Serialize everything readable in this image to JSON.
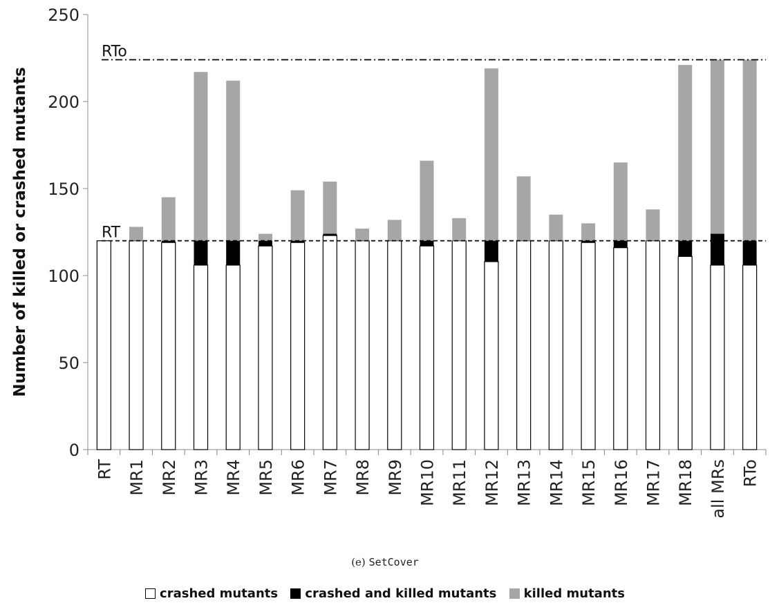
{
  "chart_data": {
    "type": "bar",
    "stacked": true,
    "categories": [
      "RT",
      "MR1",
      "MR2",
      "MR3",
      "MR4",
      "MR5",
      "MR6",
      "MR7",
      "MR8",
      "MR9",
      "MR10",
      "MR11",
      "MR12",
      "MR13",
      "MR14",
      "MR15",
      "MR16",
      "MR17",
      "MR18",
      "all MRs",
      "RTo"
    ],
    "series": [
      {
        "name": "crashed mutants",
        "color": "#ffffff",
        "values": [
          120,
          120,
          119,
          106,
          106,
          117,
          119,
          123,
          120,
          120,
          117,
          120,
          108,
          120,
          120,
          119,
          116,
          120,
          111,
          106,
          106
        ]
      },
      {
        "name": "crashed and killed mutants",
        "color": "#000000",
        "values": [
          0,
          0,
          1,
          14,
          14,
          3,
          1,
          1,
          0,
          0,
          3,
          0,
          12,
          0,
          0,
          1,
          4,
          0,
          9,
          18,
          14
        ]
      },
      {
        "name": "killed mutants",
        "color": "#a6a6a6",
        "values": [
          0,
          8,
          25,
          97,
          92,
          4,
          29,
          30,
          7,
          12,
          46,
          13,
          99,
          37,
          15,
          10,
          45,
          18,
          101,
          100,
          104
        ]
      }
    ],
    "reference_lines": [
      {
        "label": "RTo",
        "value": 224,
        "style": "dash-dot"
      },
      {
        "label": "RT",
        "value": 120,
        "style": "dashed"
      }
    ],
    "ylabel": "Number of killed or crashed mutants",
    "yticks": [
      0,
      50,
      100,
      150,
      200,
      250
    ],
    "ylim": [
      0,
      250
    ],
    "grid": false,
    "legend_position": "bottom"
  },
  "caption": {
    "prefix": "(e)",
    "name": "SetCover"
  }
}
